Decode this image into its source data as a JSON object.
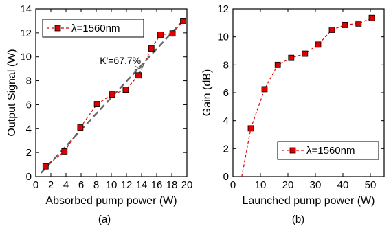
{
  "chart_data": [
    {
      "panel": "(a)",
      "type": "line",
      "xlabel": "Absorbed pump power (W)",
      "ylabel": "Output Signal (W)",
      "xlim": [
        0,
        20
      ],
      "ylim": [
        0,
        14
      ],
      "xticks": [
        0,
        2,
        4,
        6,
        8,
        10,
        12,
        14,
        16,
        18,
        20
      ],
      "yticks": [
        0,
        2,
        4,
        6,
        8,
        10,
        12,
        14
      ],
      "grid": false,
      "legend_position": "top-left",
      "series": [
        {
          "name": "λ=1560nm",
          "color": "#dd0000",
          "marker": "square",
          "line": "dashed",
          "x": [
            1.3,
            3.8,
            5.9,
            8.1,
            10.1,
            11.9,
            13.6,
            15.3,
            16.5,
            18.1,
            19.5
          ],
          "y": [
            0.85,
            2.1,
            4.1,
            6.05,
            6.85,
            7.25,
            8.45,
            10.7,
            11.85,
            11.95,
            13.0
          ]
        }
      ],
      "fit_line": {
        "color": "#666666",
        "x": [
          0.7,
          19.6
        ],
        "y": [
          0.3,
          13.1
        ]
      },
      "annotations": [
        {
          "text": "K'=67.7%",
          "x": 11.2,
          "y": 9.4,
          "arrow_to": [
            13.7,
            9.0
          ]
        }
      ]
    },
    {
      "panel": "(b)",
      "type": "line",
      "xlabel": "Launched pump power (W)",
      "ylabel": "Gain (dB)",
      "xlim": [
        0,
        55
      ],
      "ylim": [
        0,
        12
      ],
      "xticks": [
        0,
        10,
        20,
        30,
        40,
        50
      ],
      "yticks": [
        0,
        2,
        4,
        6,
        8,
        10,
        12
      ],
      "grid": false,
      "legend_position": "bottom-right",
      "series": [
        {
          "name": "λ=1560nm",
          "color": "#dd0000",
          "marker": "square",
          "line": "dashed",
          "x": [
            6.5,
            11.5,
            16.3,
            21.2,
            26.2,
            31.0,
            36.0,
            40.7,
            45.7,
            50.5
          ],
          "y": [
            3.45,
            6.25,
            8.0,
            8.5,
            8.8,
            9.45,
            10.5,
            10.85,
            10.95,
            11.35
          ]
        }
      ],
      "extrapolation": {
        "x": [
          3.2,
          6.5
        ],
        "y": [
          0,
          3.45
        ]
      }
    }
  ]
}
